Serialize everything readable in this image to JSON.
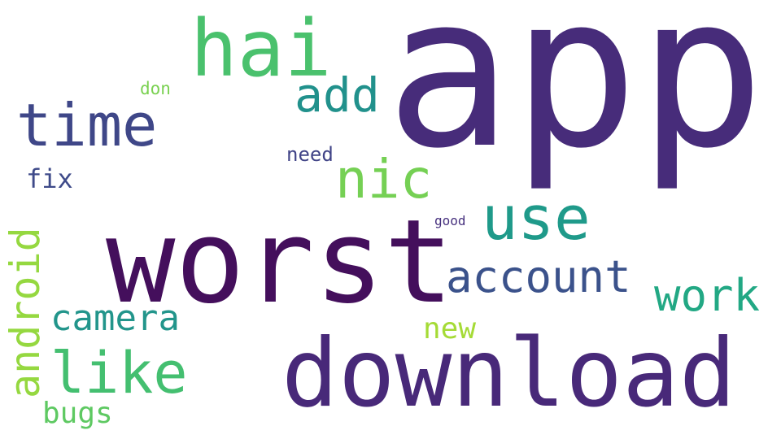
{
  "word_cloud": {
    "words": [
      {
        "text": "app",
        "color": "#472c7a"
      },
      {
        "text": "worst",
        "color": "#440f5c"
      },
      {
        "text": "download",
        "color": "#482979"
      },
      {
        "text": "hai",
        "color": "#4ac16d"
      },
      {
        "text": "time",
        "color": "#3f4788"
      },
      {
        "text": "add",
        "color": "#21918c"
      },
      {
        "text": "nic",
        "color": "#75d054"
      },
      {
        "text": "use",
        "color": "#1f9a8a"
      },
      {
        "text": "account",
        "color": "#3b528b"
      },
      {
        "text": "work",
        "color": "#22a884"
      },
      {
        "text": "android",
        "color": "#95d840"
      },
      {
        "text": "camera",
        "color": "#22958b"
      },
      {
        "text": "like",
        "color": "#44bf70"
      },
      {
        "text": "new",
        "color": "#a5db36"
      },
      {
        "text": "bugs",
        "color": "#5ec962"
      },
      {
        "text": "don",
        "color": "#7ad151"
      },
      {
        "text": "need",
        "color": "#414487"
      },
      {
        "text": "fix",
        "color": "#3e4a89"
      },
      {
        "text": "good",
        "color": "#46307e"
      }
    ]
  }
}
